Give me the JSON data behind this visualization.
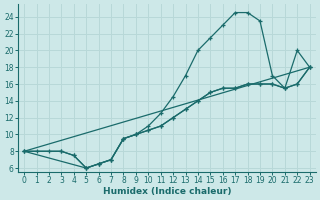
{
  "xlabel": "Humidex (Indice chaleur)",
  "xlim": [
    -0.5,
    23.5
  ],
  "ylim": [
    5.5,
    25.5
  ],
  "xticks": [
    0,
    1,
    2,
    3,
    4,
    5,
    6,
    7,
    8,
    9,
    10,
    11,
    12,
    13,
    14,
    15,
    16,
    17,
    18,
    19,
    20,
    21,
    22,
    23
  ],
  "yticks": [
    6,
    8,
    10,
    12,
    14,
    16,
    18,
    20,
    22,
    24
  ],
  "bg_color": "#cde8e8",
  "line_color": "#1a6b6b",
  "grid_color": "#b8d8d8",
  "line1_x": [
    0,
    1,
    2,
    3,
    4,
    5,
    6,
    7,
    8,
    9,
    10,
    11,
    12,
    13,
    14,
    15,
    16,
    17,
    18,
    19,
    20,
    21,
    22,
    23
  ],
  "line1_y": [
    8,
    8,
    8,
    8,
    7.5,
    6,
    6.5,
    7,
    9.5,
    10,
    11,
    12.5,
    14.5,
    17,
    20,
    21.5,
    23,
    24.5,
    24.5,
    23.5,
    17,
    15.5,
    20,
    18
  ],
  "line2_x": [
    0,
    3,
    4,
    5,
    6,
    7,
    8,
    9,
    10,
    11,
    12,
    13,
    14,
    15,
    16,
    17,
    18,
    19,
    20,
    21,
    22,
    23
  ],
  "line2_y": [
    8,
    8,
    7.5,
    6,
    6.5,
    7,
    9.5,
    10,
    10.5,
    11,
    12,
    13,
    14,
    15,
    15.5,
    15.5,
    16,
    16,
    16,
    15.5,
    16,
    18
  ],
  "line3_x": [
    0,
    5,
    6,
    7,
    8,
    9,
    10,
    11,
    12,
    13,
    14,
    15,
    16,
    17,
    18,
    19,
    20,
    21,
    22,
    23
  ],
  "line3_y": [
    8,
    6,
    6.5,
    7,
    9.5,
    10,
    10.5,
    11,
    12,
    13,
    14,
    15,
    15.5,
    15.5,
    16,
    16,
    16,
    15.5,
    16,
    18
  ],
  "line4_x": [
    0,
    23
  ],
  "line4_y": [
    8,
    18
  ]
}
